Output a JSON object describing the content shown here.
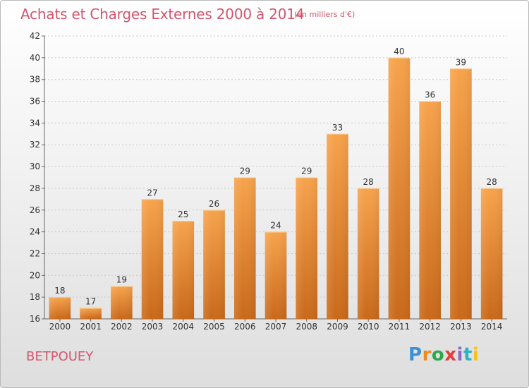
{
  "title": "Achats et Charges Externes 2000 à 2014",
  "subtitle": "(en milliers d'€)",
  "place": "BETPOUEY",
  "logo": {
    "text": "Proxiti",
    "colors": [
      "#3a8fd6",
      "#f08a1c",
      "#2ba84a",
      "#e43b3b",
      "#8d6ac4",
      "#2cb3c4",
      "#f4c21c"
    ]
  },
  "chart_data": {
    "type": "bar",
    "title": "Achats et Charges Externes 2000 à 2014",
    "subtitle": "(en milliers d'€)",
    "xlabel": "",
    "ylabel": "",
    "categories": [
      "2000",
      "2001",
      "2002",
      "2003",
      "2004",
      "2005",
      "2006",
      "2007",
      "2008",
      "2009",
      "2010",
      "2011",
      "2012",
      "2013",
      "2014"
    ],
    "values": [
      18,
      17,
      19,
      27,
      25,
      26,
      29,
      24,
      29,
      33,
      28,
      40,
      36,
      39,
      28
    ],
    "ylim": [
      16,
      42
    ],
    "yticks": [
      16,
      18,
      20,
      22,
      24,
      26,
      28,
      30,
      32,
      34,
      36,
      38,
      40,
      42
    ],
    "grid": true,
    "legend": "none",
    "bar_color_top": "#f7a34c",
    "bar_color_bottom": "#c9691a"
  }
}
